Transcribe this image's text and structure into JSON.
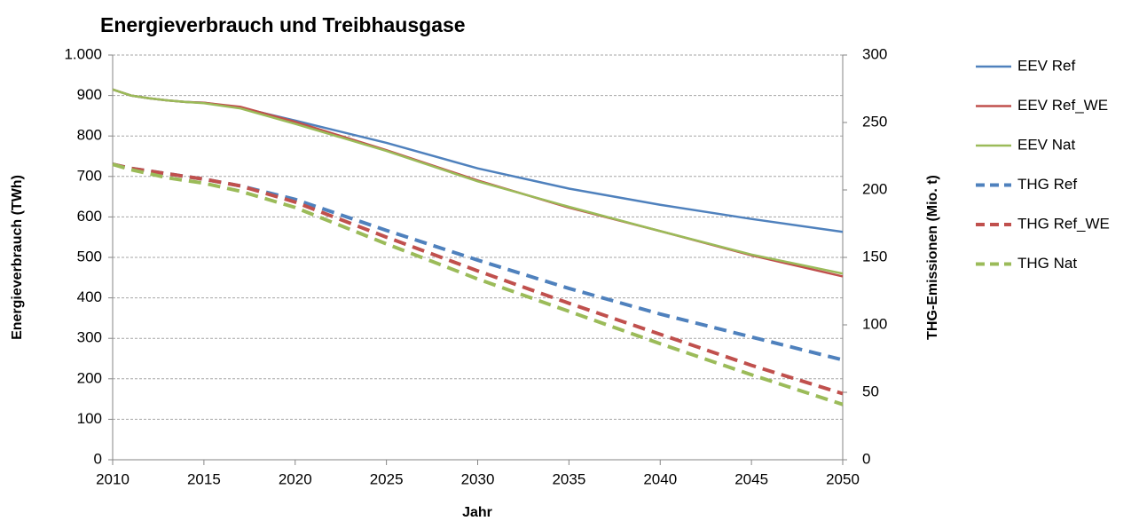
{
  "chart_data": {
    "type": "line",
    "title": "Energieverbrauch und Treibhausgase",
    "x_label": "Jahr",
    "y_label": "Energieverbrauch (TWh)",
    "y2_label": "THG-Emissionen (Mio. t)",
    "x": [
      2010,
      2011,
      2012,
      2013,
      2014,
      2015,
      2017,
      2020,
      2025,
      2030,
      2035,
      2040,
      2045,
      2050
    ],
    "xlim": [
      2010,
      2050
    ],
    "xticks": [
      2010,
      2015,
      2020,
      2025,
      2030,
      2035,
      2040,
      2045,
      2050
    ],
    "ylim": [
      0,
      1000
    ],
    "yticks": [
      0,
      100,
      200,
      300,
      400,
      500,
      600,
      700,
      800,
      900,
      {
        "value": 1000,
        "label": "1.000"
      }
    ],
    "y2lim": [
      0,
      300
    ],
    "y2ticks": [
      0,
      50,
      100,
      150,
      200,
      250,
      300
    ],
    "grid": true,
    "legend": "right",
    "series": [
      {
        "name": "EEV Ref",
        "color": "#4f81bd",
        "style": "solid",
        "values": [
          915,
          900,
          893,
          888,
          884,
          882,
          870,
          838,
          783,
          720,
          670,
          630,
          595,
          563
        ]
      },
      {
        "name": "EEV Ref_WE",
        "color": "#c0504d",
        "style": "solid",
        "values": [
          915,
          900,
          893,
          888,
          884,
          882,
          872,
          835,
          765,
          690,
          623,
          565,
          505,
          453
        ]
      },
      {
        "name": "EEV Nat",
        "color": "#9bbb59",
        "style": "solid",
        "values": [
          915,
          900,
          893,
          888,
          884,
          881,
          868,
          830,
          763,
          688,
          625,
          565,
          507,
          460
        ]
      },
      {
        "name": "THG Ref",
        "color": "#4f81bd",
        "style": "dashed",
        "axis": "y2",
        "values": [
          219,
          216,
          214,
          212,
          210,
          208,
          203,
          193,
          170,
          148,
          127,
          108,
          91,
          74
        ]
      },
      {
        "name": "THG Ref_WE",
        "color": "#c0504d",
        "style": "dashed",
        "axis": "y2",
        "values": [
          219,
          216,
          214,
          212,
          210,
          208,
          203,
          191,
          165,
          140,
          116,
          93,
          70,
          49
        ]
      },
      {
        "name": "THG Nat",
        "color": "#9bbb59",
        "style": "dashed",
        "axis": "y2",
        "values": [
          219,
          215,
          212,
          209,
          207,
          205,
          199,
          187,
          160,
          134,
          110,
          86,
          63,
          41
        ]
      }
    ]
  }
}
